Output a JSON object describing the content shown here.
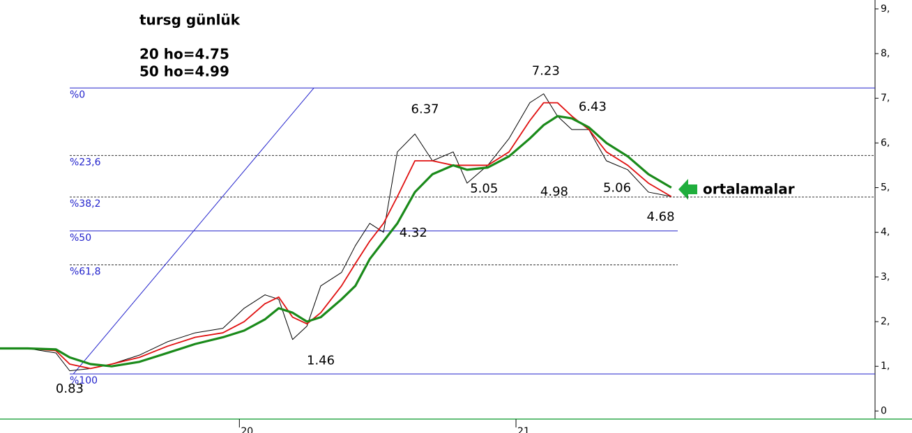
{
  "chart_data": {
    "type": "line",
    "title": "tursg günlük",
    "subtitle": [
      "20 ho=4.75",
      "50 ho=4.99"
    ],
    "callout": "ortalamalar",
    "x": [
      0,
      5.2,
      10.5,
      13.1,
      17,
      21,
      26.2,
      31.5,
      36.7,
      41.9,
      45.9,
      49.8,
      52.4,
      55,
      57.7,
      60.3,
      64.2,
      66.8,
      69.5,
      72.1,
      74.7,
      78,
      81.3,
      85.2,
      87.8,
      91.7,
      95.7,
      99.6,
      102.2,
      104.8,
      107.5,
      110.7,
      114,
      118,
      121.9,
      126.2
    ],
    "series": [
      {
        "color": "#000000",
        "values": [
          1.4,
          1.4,
          1.3,
          0.9,
          0.95,
          1.05,
          1.25,
          1.55,
          1.75,
          1.85,
          2.3,
          2.6,
          2.5,
          1.6,
          1.9,
          2.8,
          3.1,
          3.7,
          4.2,
          4.0,
          5.8,
          6.2,
          5.6,
          5.8,
          5.1,
          5.5,
          6.1,
          6.9,
          7.1,
          6.6,
          6.3,
          6.3,
          5.6,
          5.4,
          4.9,
          4.8
        ]
      },
      {
        "color": "#e01010",
        "values": [
          1.4,
          1.4,
          1.35,
          1.05,
          0.95,
          1.05,
          1.2,
          1.45,
          1.65,
          1.75,
          2.0,
          2.4,
          2.55,
          2.1,
          1.95,
          2.2,
          2.8,
          3.3,
          3.8,
          4.2,
          4.8,
          5.6,
          5.6,
          5.5,
          5.5,
          5.5,
          5.8,
          6.5,
          6.9,
          6.9,
          6.6,
          6.3,
          5.8,
          5.5,
          5.1,
          4.8
        ]
      },
      {
        "color": "#1a8a1a",
        "values": [
          1.4,
          1.4,
          1.38,
          1.2,
          1.05,
          1.0,
          1.1,
          1.3,
          1.5,
          1.65,
          1.8,
          2.05,
          2.3,
          2.2,
          2.0,
          2.1,
          2.5,
          2.8,
          3.4,
          3.8,
          4.2,
          4.9,
          5.3,
          5.5,
          5.4,
          5.45,
          5.7,
          6.1,
          6.4,
          6.6,
          6.55,
          6.35,
          6.0,
          5.7,
          5.3,
          5.0
        ]
      }
    ],
    "xlim": [
      0,
      164.5
    ],
    "xticks": [
      {
        "value": 45,
        "label": "20"
      },
      {
        "value": 97,
        "label": "21"
      }
    ],
    "ylim": [
      -0.15,
      9.2
    ],
    "yticks": [
      0,
      {
        "value": 1,
        "label": "1,"
      },
      {
        "value": 2,
        "label": "2,"
      },
      {
        "value": 3,
        "label": "3,"
      },
      {
        "value": 4,
        "label": "4,"
      },
      {
        "value": 5,
        "label": "5,"
      },
      {
        "value": 6,
        "label": "6,"
      },
      {
        "value": 7,
        "label": "7,"
      },
      {
        "value": 8,
        "label": "8,"
      },
      {
        "value": 9,
        "label": "9,"
      }
    ],
    "fib_color": "#2222cc",
    "fib_levels": [
      {
        "label": "%0",
        "value": 7.23,
        "dashed": false,
        "extends_right": true
      },
      {
        "label": "%23,6",
        "value": 5.72,
        "dashed": true,
        "extends_right": true
      },
      {
        "label": "%38,2",
        "value": 4.79,
        "dashed": true,
        "extends_right": true
      },
      {
        "label": "%50",
        "value": 4.03,
        "dashed": false,
        "extends_right": false
      },
      {
        "label": "%61,8",
        "value": 3.27,
        "dashed": true,
        "extends_right": false
      },
      {
        "label": "%100",
        "value": 0.83,
        "dashed": false,
        "extends_right": true
      }
    ],
    "trendline": {
      "x": [
        13.8,
        59
      ],
      "values": [
        0.83,
        7.23
      ],
      "color": "#2222cc"
    },
    "annotations": [
      {
        "x": 13.1,
        "value": 0.83,
        "position": "below"
      },
      {
        "x": 60.3,
        "value": 1.46,
        "position": "below"
      },
      {
        "x": 77.7,
        "value": 4.32,
        "position": "below"
      },
      {
        "x": 79.9,
        "value": 6.37,
        "position": "above"
      },
      {
        "x": 91,
        "value": 5.05,
        "position": "at"
      },
      {
        "x": 102.6,
        "value": 7.23,
        "position": "above"
      },
      {
        "x": 111.4,
        "value": 6.43,
        "position": "above"
      },
      {
        "x": 104.2,
        "value": 4.98,
        "position": "at"
      },
      {
        "x": 116,
        "value": 5.06,
        "position": "at"
      },
      {
        "x": 124.2,
        "value": 4.68,
        "position": "below"
      }
    ]
  }
}
